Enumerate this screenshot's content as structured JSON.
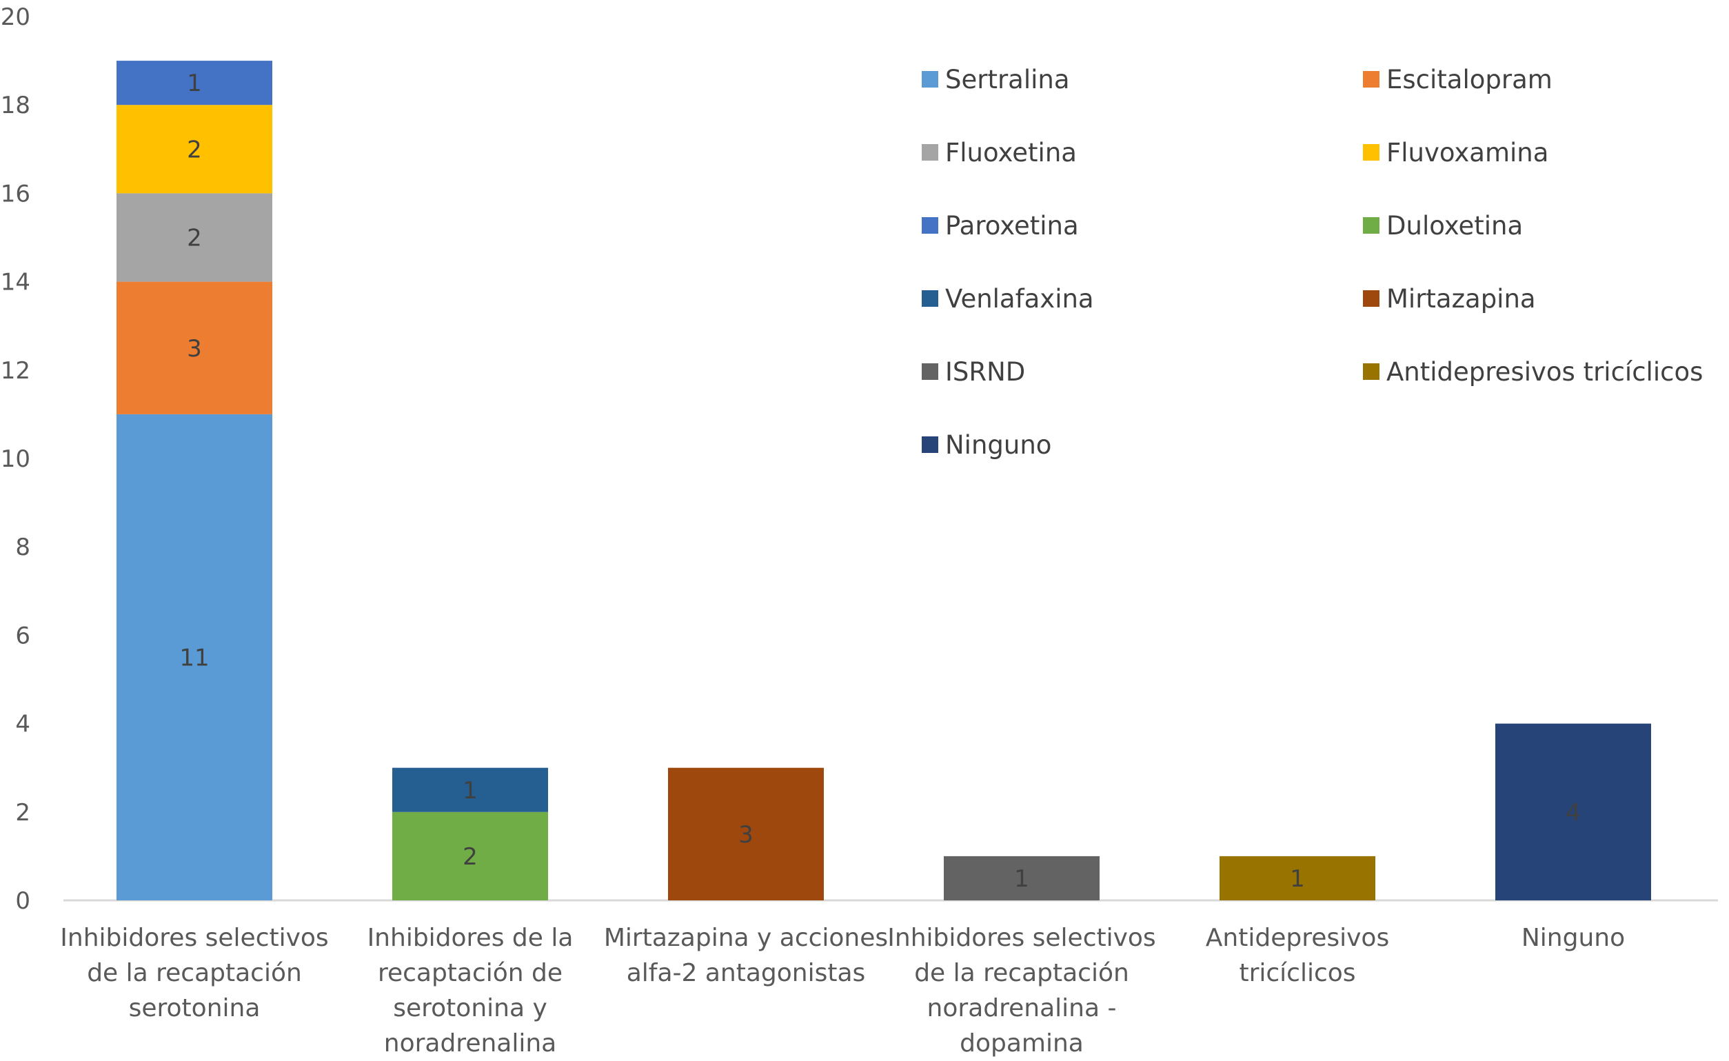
{
  "chart_data": {
    "type": "bar",
    "stacked": true,
    "categories": [
      [
        "Inhibidores selectivos",
        "de la recaptación",
        "serotonina"
      ],
      [
        "Inhibidores de la",
        "recaptación de",
        "serotonina y",
        "noradrenalina"
      ],
      [
        "Mirtazapina y acciones",
        "alfa-2 antagonistas"
      ],
      [
        "Inhibidores selectivos",
        "de la recaptación",
        "noradrenalina -",
        "dopamina"
      ],
      [
        "Antidepresivos",
        "tricíclicos"
      ],
      [
        "Ninguno"
      ]
    ],
    "series": [
      {
        "name": "Sertralina",
        "color": "#5B9BD5",
        "values": [
          11,
          0,
          0,
          0,
          0,
          0
        ]
      },
      {
        "name": "Escitalopram",
        "color": "#ED7D31",
        "values": [
          3,
          0,
          0,
          0,
          0,
          0
        ]
      },
      {
        "name": "Fluoxetina",
        "color": "#A5A5A5",
        "values": [
          2,
          0,
          0,
          0,
          0,
          0
        ]
      },
      {
        "name": "Fluvoxamina",
        "color": "#FFC000",
        "values": [
          2,
          0,
          0,
          0,
          0,
          0
        ]
      },
      {
        "name": "Paroxetina",
        "color": "#4472C4",
        "values": [
          1,
          0,
          0,
          0,
          0,
          0
        ]
      },
      {
        "name": "Duloxetina",
        "color": "#70AD47",
        "values": [
          0,
          2,
          0,
          0,
          0,
          0
        ]
      },
      {
        "name": "Venlafaxina",
        "color": "#255E91",
        "values": [
          0,
          1,
          0,
          0,
          0,
          0
        ]
      },
      {
        "name": "Mirtazapina",
        "color": "#9E480E",
        "values": [
          0,
          0,
          3,
          0,
          0,
          0
        ]
      },
      {
        "name": "ISRND",
        "color": "#636363",
        "values": [
          0,
          0,
          0,
          1,
          0,
          0
        ]
      },
      {
        "name": "Antidepresivos tricíclicos",
        "color": "#997300",
        "values": [
          0,
          0,
          0,
          0,
          1,
          0
        ]
      },
      {
        "name": "Ninguno",
        "color": "#264478",
        "values": [
          0,
          0,
          0,
          0,
          0,
          4
        ]
      }
    ],
    "ylim": [
      0,
      20
    ],
    "yticks": [
      0,
      2,
      4,
      6,
      8,
      10,
      12,
      14,
      16,
      18,
      20
    ],
    "grid": false,
    "legend_position": "top-right",
    "legend_columns": 2,
    "data_labels": true,
    "title": "",
    "xlabel": "",
    "ylabel": ""
  }
}
